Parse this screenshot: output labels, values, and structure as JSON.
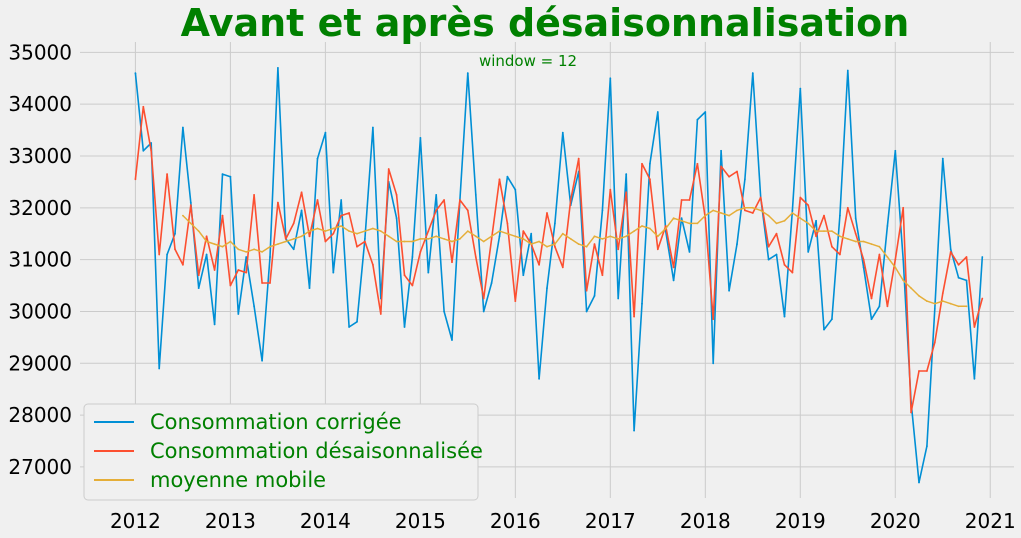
{
  "chart_data": {
    "type": "line",
    "title": "Avant et après désaisonnalisation",
    "annotation": "window = 12",
    "text_color": "#008000",
    "xlabel": "",
    "ylabel": "",
    "x_start_year": 2012,
    "x_tick_labels": [
      "2012",
      "2013",
      "2014",
      "2015",
      "2016",
      "2017",
      "2018",
      "2019",
      "2020",
      "2021"
    ],
    "xlim": [
      "2011-06",
      "2021-04"
    ],
    "ylim": [
      26400,
      35200
    ],
    "y_ticks": [
      27000,
      28000,
      29000,
      30000,
      31000,
      32000,
      33000,
      34000,
      35000
    ],
    "grid": true,
    "legend_position": "bottom-left",
    "series": [
      {
        "name": "Consommation corrigée",
        "color": "#008fd5",
        "start_index": 0,
        "values": [
          34600,
          33100,
          33250,
          28900,
          31100,
          31500,
          33550,
          32100,
          30450,
          31100,
          29750,
          32650,
          32600,
          29950,
          31050,
          30100,
          29050,
          31050,
          34700,
          31400,
          31200,
          31950,
          30450,
          32950,
          33450,
          30750,
          32150,
          29700,
          29800,
          31400,
          33550,
          30250,
          32500,
          31800,
          29700,
          31050,
          33350,
          30750,
          32250,
          30000,
          29450,
          32150,
          34600,
          32250,
          30000,
          30550,
          31450,
          32600,
          32350,
          30700,
          31500,
          28700,
          30450,
          31700,
          33450,
          32050,
          32700,
          30000,
          30300,
          31950,
          34500,
          30250,
          32650,
          27700,
          30150,
          32850,
          33850,
          31550,
          30600,
          31800,
          31150,
          33700,
          33850,
          29000,
          33100,
          30400,
          31300,
          32550,
          34600,
          32200,
          31000,
          31100,
          29900,
          31950,
          34300,
          31150,
          31750,
          29650,
          29850,
          31850,
          34650,
          31800,
          30850,
          29850,
          30100,
          31650,
          33100,
          31000,
          28250,
          26700,
          27400,
          30050,
          32950,
          31200,
          30650,
          30600,
          28700,
          31050
        ]
      },
      {
        "name": "Consommation désaisonnalisée",
        "color": "#fc4f30",
        "start_index": 0,
        "values": [
          32550,
          33950,
          33100,
          31100,
          32650,
          31200,
          30900,
          32050,
          30700,
          31450,
          30800,
          31850,
          30500,
          30800,
          30750,
          32250,
          30550,
          30550,
          32100,
          31400,
          31700,
          32300,
          31450,
          32150,
          31350,
          31500,
          31850,
          31900,
          31250,
          31350,
          30900,
          29950,
          32750,
          32250,
          30700,
          30500,
          31150,
          31550,
          31950,
          32150,
          30950,
          32150,
          31950,
          31050,
          30250,
          31400,
          32550,
          31700,
          30200,
          31550,
          31300,
          30900,
          31900,
          31250,
          30850,
          32150,
          32950,
          30400,
          31300,
          30700,
          32350,
          31200,
          32300,
          29900,
          32850,
          32550,
          31200,
          31650,
          30850,
          32150,
          32150,
          32850,
          31800,
          29850,
          32800,
          32600,
          32700,
          31950,
          31900,
          32200,
          31250,
          31500,
          30900,
          30750,
          32200,
          32050,
          31450,
          31850,
          31250,
          31100,
          32000,
          31500,
          31000,
          30250,
          31100,
          30100,
          31000,
          32000,
          28050,
          28850,
          28850,
          29400,
          30350,
          31150,
          30900,
          31050,
          29700,
          30250
        ]
      },
      {
        "name": "moyenne mobile",
        "color": "#e5ae38",
        "start_index": 6,
        "values": [
          31850,
          31700,
          31550,
          31350,
          31300,
          31250,
          31350,
          31200,
          31150,
          31200,
          31150,
          31250,
          31300,
          31350,
          31400,
          31450,
          31550,
          31600,
          31550,
          31600,
          31650,
          31550,
          31500,
          31550,
          31600,
          31550,
          31450,
          31350,
          31350,
          31350,
          31400,
          31400,
          31450,
          31400,
          31350,
          31400,
          31550,
          31450,
          31350,
          31450,
          31550,
          31500,
          31450,
          31400,
          31300,
          31350,
          31250,
          31300,
          31500,
          31400,
          31300,
          31250,
          31450,
          31400,
          31450,
          31400,
          31450,
          31550,
          31650,
          31600,
          31450,
          31600,
          31800,
          31750,
          31700,
          31700,
          31850,
          31950,
          31900,
          31850,
          31950,
          32000,
          32000,
          31950,
          31850,
          31700,
          31750,
          31900,
          31800,
          31700,
          31550,
          31550,
          31550,
          31450,
          31400,
          31350,
          31350,
          31300,
          31250,
          31050,
          30850,
          30600,
          30450,
          30300,
          30200,
          30150,
          30200,
          30150,
          30100,
          30100
        ]
      }
    ]
  }
}
